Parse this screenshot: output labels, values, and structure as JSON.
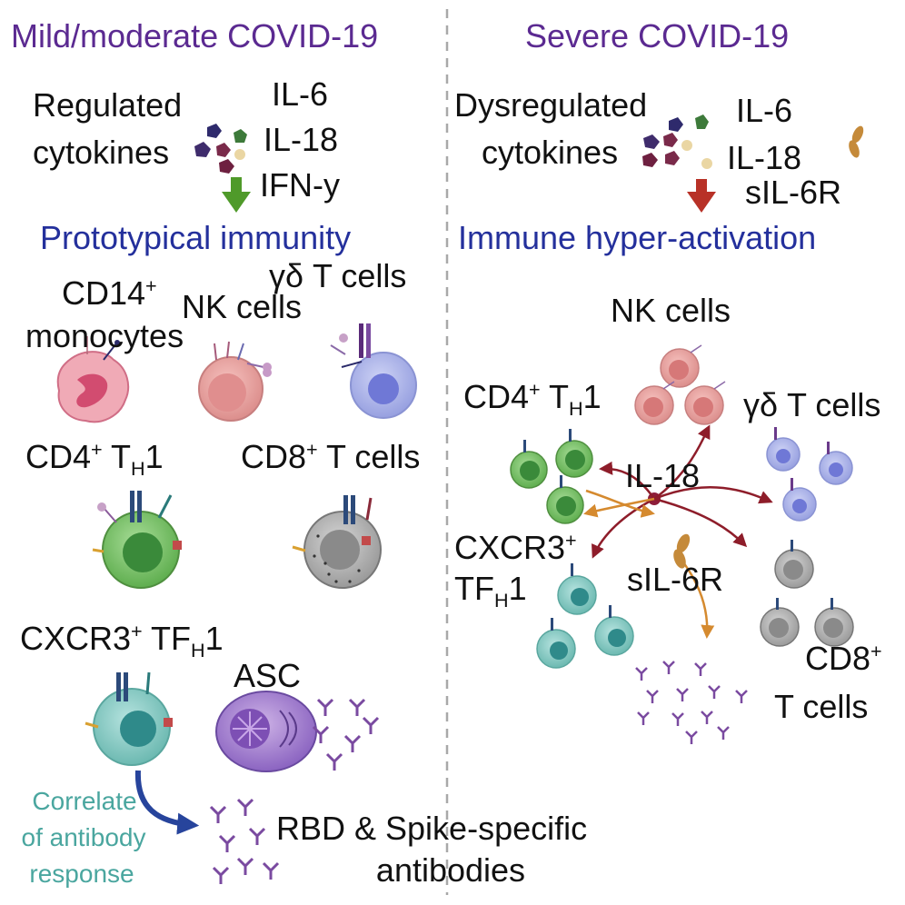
{
  "colors": {
    "header": "#5b2a91",
    "section": "#24309c",
    "correlate": "#4aa69f",
    "green_arrow": "#4f9a2a",
    "red_arrow": "#b83127",
    "curve_red": "#8e1d2a",
    "curve_orange": "#d58a2f",
    "arrow_blue": "#27449c",
    "divider": "#a8a8a8"
  },
  "left": {
    "header": "Mild/moderate COVID-19",
    "cytokine_label_line1": "Regulated",
    "cytokine_label_line2": "cytokines",
    "cytokines": [
      "IL-6",
      "IL-18",
      "IFN-y"
    ],
    "section": "Prototypical immunity",
    "cells": {
      "cd14_base": "CD14",
      "cd14_sup": "+",
      "monocytes": "monocytes",
      "nk": "NK cells",
      "gd": "γδ T cells",
      "cd4_base": "CD4",
      "cd4_sup": "+",
      "cd4_th": "T",
      "cd4_sub": "H",
      "cd4_tail": "1",
      "cd8_base": "CD8",
      "cd8_sup": "+",
      "cd8_tail": "T cells",
      "cxcr3_base": "CXCR3",
      "cxcr3_sup": "+",
      "cxcr3_tf": "TF",
      "cxcr3_sub": "H",
      "cxcr3_tail": "1",
      "asc": "ASC"
    },
    "correlate": [
      "Correlate",
      "of antibody",
      "response"
    ],
    "antibodies": [
      "RBD & Spike-specific",
      "antibodies"
    ]
  },
  "right": {
    "header": "Severe COVID-19",
    "cytokine_label_line1": "Dysregulated",
    "cytokine_label_line2": "cytokines",
    "cytokines": [
      "IL-6",
      "IL-18"
    ],
    "sil6r": "sIL-6R",
    "section": "Immune hyper-activation",
    "cells": {
      "nk": "NK cells",
      "cd4_base": "CD4",
      "cd4_sup": "+",
      "cd4_th": "T",
      "cd4_sub": "H",
      "cd4_tail": "1",
      "gd": "γδ T cells",
      "il18": "IL-18",
      "cxcr3_base": "CXCR3",
      "cxcr3_sup": "+",
      "tf": "TF",
      "tf_sub": "H",
      "tf_tail": "1",
      "sil6r": "sIL-6R",
      "cd8_base": "CD8",
      "cd8_sup": "+",
      "tcells": "T cells"
    }
  }
}
